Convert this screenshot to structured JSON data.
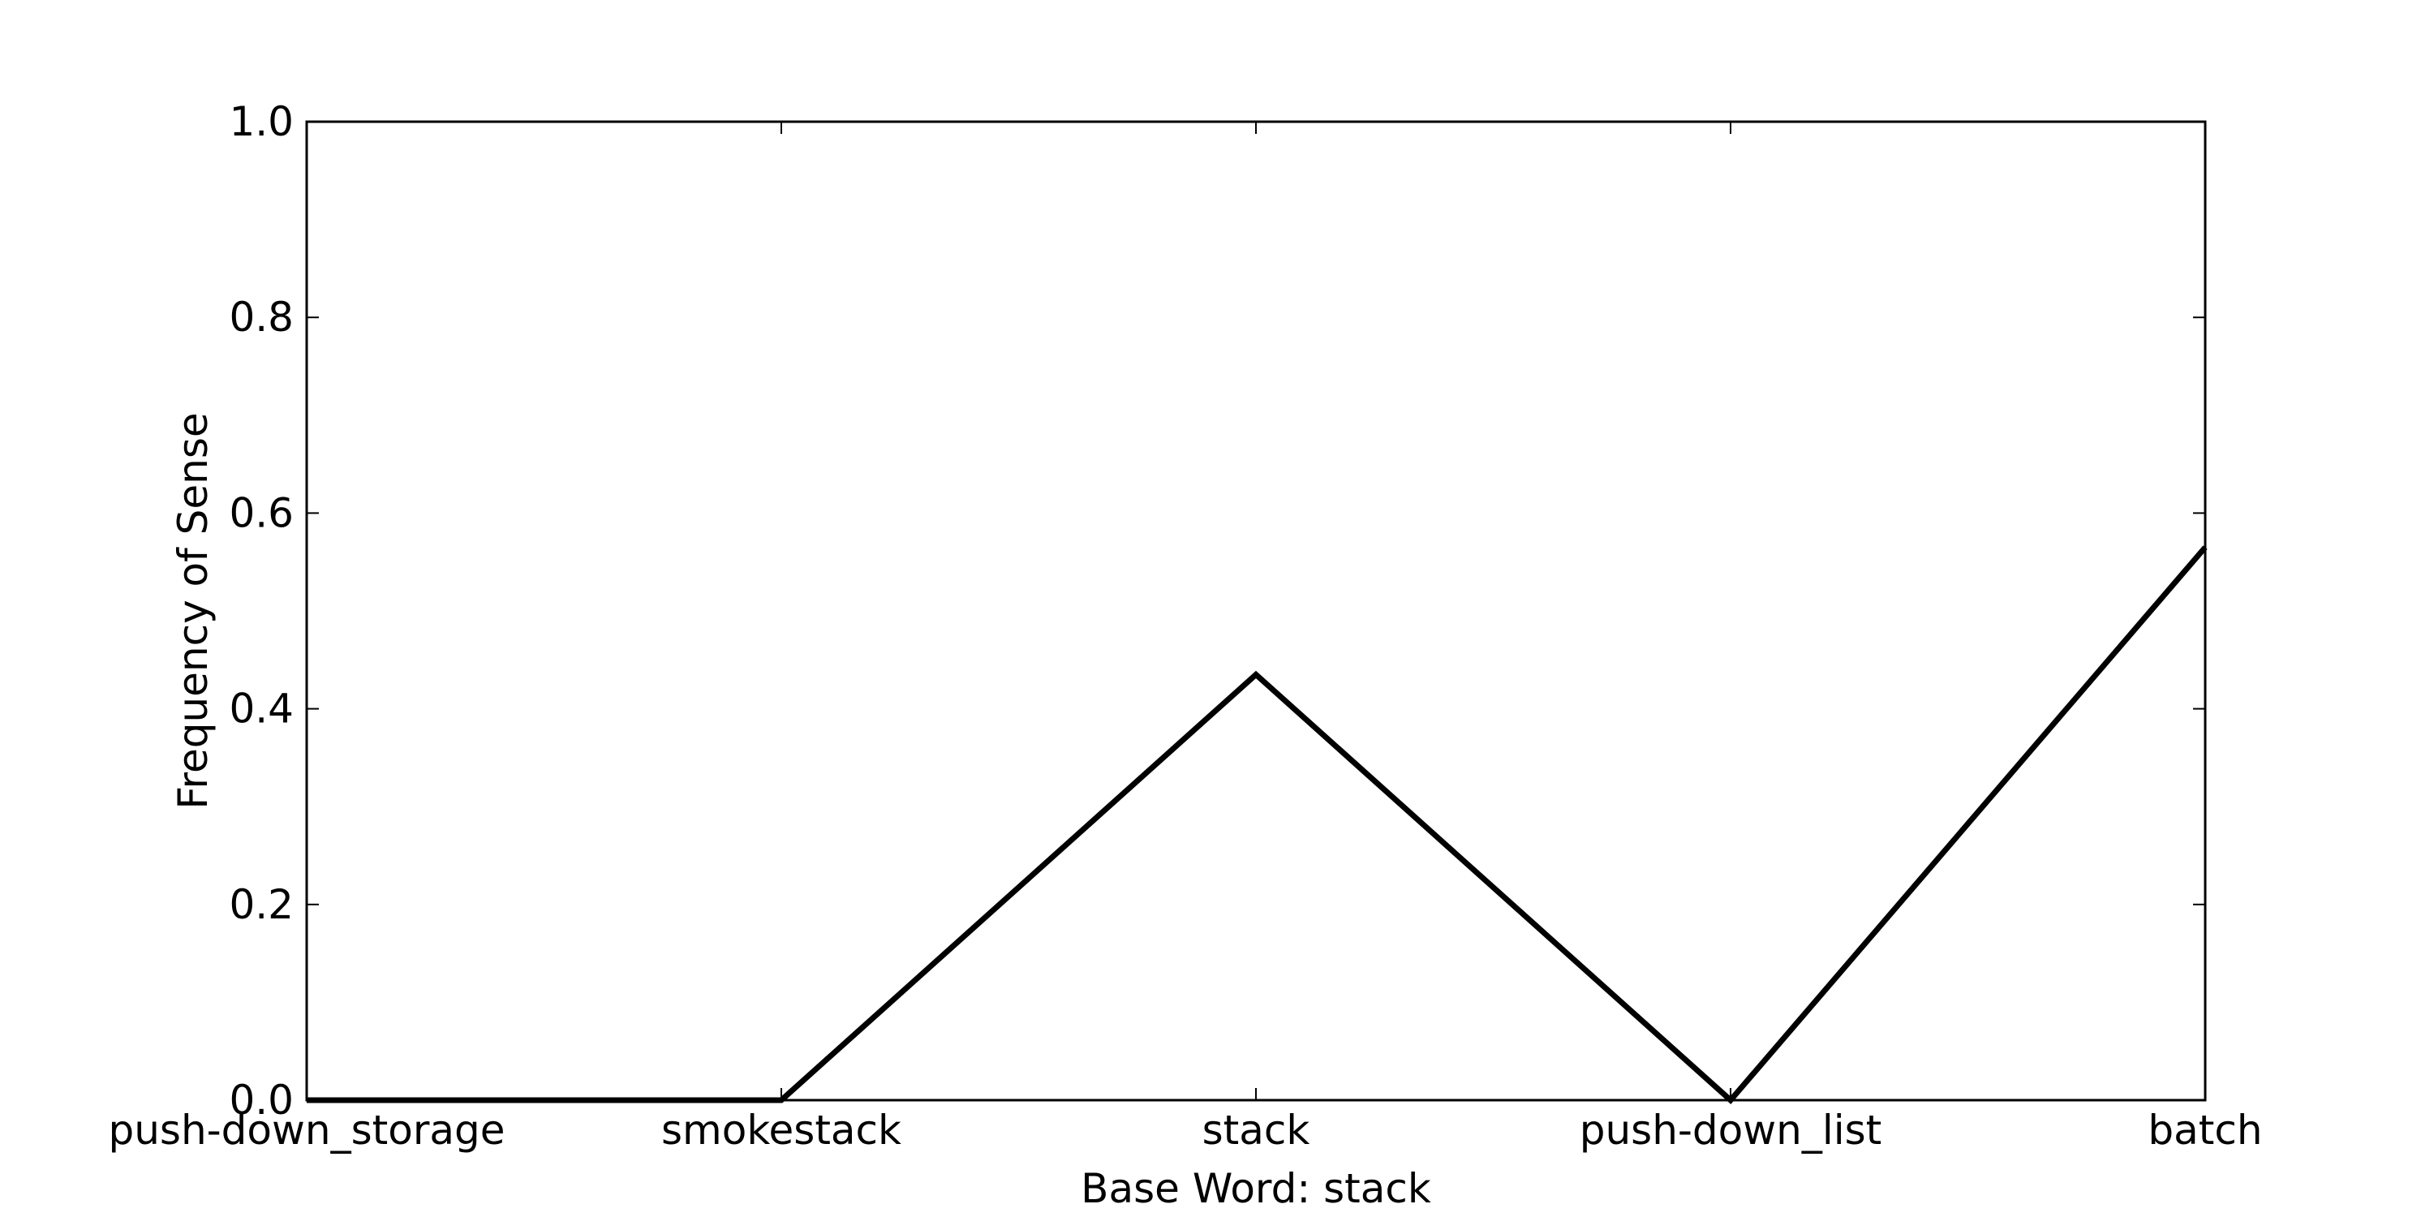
{
  "chart_data": {
    "type": "line",
    "title": "",
    "xlabel": "Base Word: stack",
    "ylabel": "Frequency of Sense",
    "categories": [
      "push-down_storage",
      "smokestack",
      "stack",
      "push-down_list",
      "batch"
    ],
    "series": [
      {
        "values": [
          0.0,
          0.0,
          0.435,
          0.0,
          0.565
        ],
        "color": "#000000"
      }
    ],
    "ylim": [
      0.0,
      1.0
    ],
    "yticks": [
      "0.0",
      "0.2",
      "0.4",
      "0.6",
      "0.8",
      "1.0"
    ],
    "grid": false,
    "legend": "none"
  }
}
